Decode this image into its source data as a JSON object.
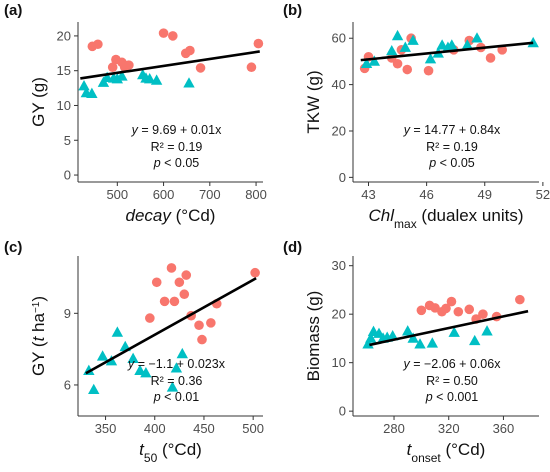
{
  "figure": {
    "colors": {
      "circle": "#F8766D",
      "triangle": "#00BFC4",
      "fit_line": "#000000",
      "axis": "#333333"
    }
  },
  "chart_data": [
    {
      "panel": "(a)",
      "type": "scatter",
      "xlabel_parts": [
        {
          "t": "decay",
          "style": "italic"
        },
        {
          "t": " (°Cd)",
          "style": "normal"
        }
      ],
      "ylabel": "GY (g)",
      "xlim": [
        415,
        815
      ],
      "ylim": [
        -1,
        22
      ],
      "xticks": [
        500,
        600,
        700,
        800
      ],
      "yticks": [
        0,
        5,
        10,
        15,
        20
      ],
      "series": [
        {
          "marker": "circle",
          "color": "#F8766D",
          "points": [
            [
              446,
              18.5
            ],
            [
              458,
              18.8
            ],
            [
              490,
              15.5
            ],
            [
              497,
              16.6
            ],
            [
              510,
              16.2
            ],
            [
              516,
              15.5
            ],
            [
              525,
              15.8
            ],
            [
              600,
              20.4
            ],
            [
              620,
              20
            ],
            [
              648,
              17.5
            ],
            [
              657,
              17.9
            ],
            [
              680,
              15.4
            ],
            [
              790,
              15.5
            ],
            [
              805,
              18.9
            ]
          ]
        },
        {
          "marker": "triangle",
          "color": "#00BFC4",
          "points": [
            [
              428,
              12.8
            ],
            [
              433,
              11.8
            ],
            [
              445,
              11.7
            ],
            [
              470,
              13.3
            ],
            [
              478,
              14
            ],
            [
              492,
              13.9
            ],
            [
              500,
              13.8
            ],
            [
              510,
              14.2
            ],
            [
              555,
              14.4
            ],
            [
              562,
              13.9
            ],
            [
              570,
              13.8
            ],
            [
              585,
              13.6
            ],
            [
              655,
              13.2
            ]
          ]
        }
      ],
      "fit": {
        "intercept": 9.69,
        "slope": 0.01,
        "x_range": [
          420,
          808
        ]
      },
      "annotations": {
        "equation": "y = 9.69 + 0.01x",
        "r2": "R² = 0.19",
        "p": "p < 0.05"
      }
    },
    {
      "panel": "(b)",
      "type": "scatter",
      "xlabel_parts": [
        {
          "t": "Chl",
          "style": "italic"
        },
        {
          "t": "max",
          "style": "sub"
        },
        {
          "t": " (dualex units)",
          "style": "normal"
        }
      ],
      "ylabel": "TKW (g)",
      "xlim": [
        42.2,
        51.8
      ],
      "ylim": [
        -2,
        67
      ],
      "xticks": [
        43,
        46,
        49,
        52
      ],
      "yticks": [
        0,
        20,
        40,
        60
      ],
      "series": [
        {
          "marker": "circle",
          "color": "#F8766D",
          "points": [
            [
              42.8,
              47
            ],
            [
              43,
              52
            ],
            [
              44.2,
              51.5
            ],
            [
              44.5,
              49
            ],
            [
              44.7,
              55
            ],
            [
              45,
              46.5
            ],
            [
              45.2,
              60
            ],
            [
              46.1,
              46
            ],
            [
              47.4,
              55
            ],
            [
              48.2,
              59
            ],
            [
              48.8,
              56
            ],
            [
              49.3,
              51.5
            ],
            [
              49.9,
              55
            ]
          ]
        },
        {
          "marker": "triangle",
          "color": "#00BFC4",
          "points": [
            [
              42.9,
              49
            ],
            [
              43.3,
              50
            ],
            [
              44.2,
              54.5
            ],
            [
              44.5,
              61
            ],
            [
              44.9,
              56
            ],
            [
              45.3,
              59
            ],
            [
              46.2,
              51
            ],
            [
              46.6,
              53.5
            ],
            [
              46.8,
              57
            ],
            [
              47.1,
              56
            ],
            [
              47.3,
              57
            ],
            [
              48.1,
              57
            ],
            [
              48.6,
              60
            ],
            [
              51.5,
              58
            ]
          ]
        }
      ],
      "fit": {
        "intercept": 14.77,
        "slope": 0.84,
        "x_range": [
          42.6,
          51.5
        ]
      },
      "annotations": {
        "equation": "y = 14.77 + 0.84x",
        "r2": "R² = 0.19",
        "p": "p < 0.05"
      }
    },
    {
      "panel": "(c)",
      "type": "scatter",
      "xlabel_parts": [
        {
          "t": "t",
          "style": "italic"
        },
        {
          "t": "50",
          "style": "sub"
        },
        {
          "t": " (°Cd)",
          "style": "normal"
        }
      ],
      "ylabel_parts": [
        {
          "t": "GY (",
          "style": "normal"
        },
        {
          "t": "t",
          "style": "italic"
        },
        {
          "t": " ha",
          "style": "normal"
        },
        {
          "t": "−1",
          "style": "sup"
        },
        {
          "t": ")",
          "style": "normal"
        }
      ],
      "xlim": [
        322,
        510
      ],
      "ylim": [
        4.7,
        11.4
      ],
      "xticks": [
        350,
        400,
        450,
        500
      ],
      "yticks": [
        6,
        9
      ],
      "series": [
        {
          "marker": "circle",
          "color": "#F8766D",
          "points": [
            [
              395,
              8.8
            ],
            [
              402,
              10.3
            ],
            [
              410,
              9.5
            ],
            [
              417,
              10.9
            ],
            [
              420,
              9.5
            ],
            [
              425,
              10.3
            ],
            [
              430,
              9.8
            ],
            [
              432,
              10.6
            ],
            [
              437,
              8.9
            ],
            [
              445,
              8.5
            ],
            [
              448,
              7.9
            ],
            [
              457,
              8.6
            ],
            [
              463,
              9.4
            ],
            [
              502,
              10.7
            ]
          ]
        },
        {
          "marker": "triangle",
          "color": "#00BFC4",
          "points": [
            [
              333,
              6.6
            ],
            [
              338,
              5.8
            ],
            [
              347,
              7.2
            ],
            [
              356,
              7
            ],
            [
              362,
              8.2
            ],
            [
              370,
              7.6
            ],
            [
              378,
              7.1
            ],
            [
              385,
              6.6
            ],
            [
              391,
              6.5
            ],
            [
              418,
              5.9
            ],
            [
              422,
              6.7
            ],
            [
              428,
              7.3
            ]
          ]
        }
      ],
      "fit": {
        "intercept": -1.1,
        "slope": 0.023,
        "x_range": [
          330,
          503
        ]
      },
      "annotations": {
        "equation": "y = −1.1 + 0.023x",
        "r2": "R² = 0.36",
        "p": "p < 0.01"
      }
    },
    {
      "panel": "(d)",
      "type": "scatter",
      "xlabel_parts": [
        {
          "t": "t",
          "style": "italic"
        },
        {
          "t": "onset",
          "style": "sub"
        },
        {
          "t": " (°Cd)",
          "style": "normal"
        }
      ],
      "ylabel": "Biomass (g)",
      "xlim": [
        250,
        386
      ],
      "ylim": [
        -1,
        32
      ],
      "xticks": [
        280,
        320,
        360
      ],
      "yticks": [
        0,
        10,
        20,
        30
      ],
      "series": [
        {
          "marker": "circle",
          "color": "#F8766D",
          "points": [
            [
              300,
              20.8
            ],
            [
              306,
              21.8
            ],
            [
              310,
              21.3
            ],
            [
              315,
              20.5
            ],
            [
              318,
              21.2
            ],
            [
              322,
              22.6
            ],
            [
              327,
              20.5
            ],
            [
              335,
              21
            ],
            [
              340,
              19
            ],
            [
              345,
              20
            ],
            [
              355,
              19.5
            ],
            [
              372,
              23
            ]
          ]
        },
        {
          "marker": "triangle",
          "color": "#00BFC4",
          "points": [
            [
              261,
              13.8
            ],
            [
              263,
              15
            ],
            [
              265,
              16.4
            ],
            [
              269,
              16
            ],
            [
              272,
              15
            ],
            [
              275,
              15.2
            ],
            [
              279,
              15.5
            ],
            [
              290,
              16.5
            ],
            [
              294,
              15
            ],
            [
              299,
              13.8
            ],
            [
              308,
              14
            ],
            [
              324,
              16.2
            ],
            [
              339,
              14.5
            ],
            [
              348,
              16.5
            ]
          ]
        }
      ],
      "fit": {
        "intercept": -2.06,
        "slope": 0.06,
        "x_range": [
          262,
          378
        ]
      },
      "annotations": {
        "equation": "y = −2.06 + 0.06x",
        "r2": "R² = 0.50",
        "p": "p < 0.001"
      }
    }
  ]
}
